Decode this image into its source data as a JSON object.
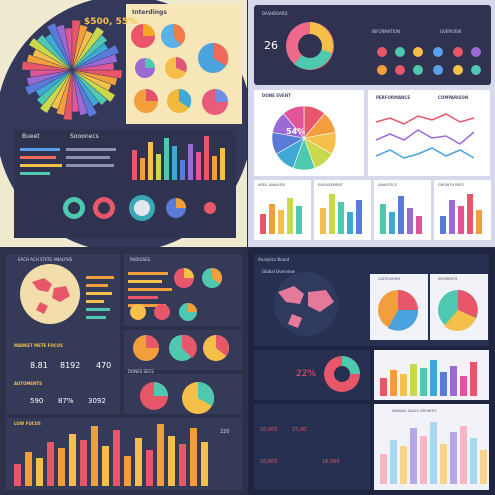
{
  "q1": {
    "headline": "$500, 55%",
    "pies_title": "Interdings",
    "left_title": "Bueet",
    "mid_title": "Sooonecs"
  },
  "q2": {
    "panel_a": "DASHBOARD",
    "panel_b": "INFORMATION",
    "panel_c": "OVERVIEW",
    "big_number": "26",
    "donut_title": "DONE EVENT",
    "donut_value": "54%",
    "line_title": "PERFORMANCE",
    "line_title_b": "COMPARISON",
    "bar_titles": [
      "AREA ANALYSIS",
      "ENGAGEMENT",
      "ANALYTICS",
      "GROWTH RATE"
    ]
  },
  "q3": {
    "map_title": "EACH ACH STATE ANALYSIS",
    "bars_title": "RADIUSES",
    "stats_title": "MARKET METE FOCUS",
    "stats": [
      "8.81",
      "8192",
      "470"
    ],
    "stats2_title": "AUTOMENTS",
    "stats2": [
      "590",
      "87%",
      "3092"
    ],
    "pies2_title": "DONES SECS",
    "bottom_title": "LOW FOCUS",
    "pct_value": "220"
  },
  "q4": {
    "title": "Analytics Board",
    "map_label": "Global Overview",
    "pie_a": "CATEGORIES",
    "pie_b": "SEGMENTS",
    "gauge_value": "22%",
    "table_values": [
      "10,005",
      "15,00",
      "10,605",
      "16,000"
    ],
    "bottom_title": "ANNUAL SALES GROWTH"
  }
}
